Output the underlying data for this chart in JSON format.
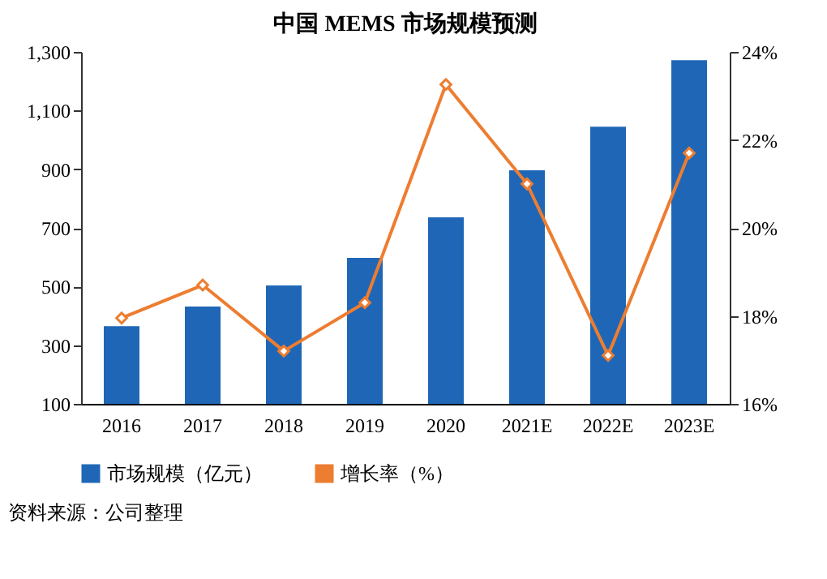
{
  "chart_data": {
    "type": "bar",
    "title": "中国 MEMS 市场规模预测",
    "categories": [
      "2016",
      "2017",
      "2018",
      "2019",
      "2020",
      "2021E",
      "2022E",
      "2023E"
    ],
    "series": [
      {
        "name": "市场规模（亿元）",
        "color": "#1f67b6",
        "values": [
          365,
          432,
          504,
          598,
          736,
          896,
          1045,
          1272
        ]
      },
      {
        "name": "增长率（%）",
        "color": "#ed7d31",
        "type": "line",
        "axis": "y2",
        "marker": "diamond",
        "values": [
          17.95,
          18.7,
          17.2,
          18.3,
          23.26,
          21.0,
          17.1,
          21.7
        ]
      }
    ],
    "ylim": [
      100,
      1300
    ],
    "yticks": [
      100,
      300,
      500,
      700,
      900,
      {
        "value": 1100,
        "label": "1,100"
      },
      {
        "value": 1300,
        "label": "1,300"
      }
    ],
    "y2lim": [
      16,
      24
    ],
    "y2ticks": [
      {
        "value": 16,
        "label": "16%"
      },
      {
        "value": 18,
        "label": "18%"
      },
      {
        "value": 20,
        "label": "20%"
      },
      {
        "value": 22,
        "label": "22%"
      },
      {
        "value": 24,
        "label": "24%"
      }
    ],
    "grid": false,
    "legend": "bottom",
    "annotations": [
      "资料来源：公司整理"
    ]
  }
}
